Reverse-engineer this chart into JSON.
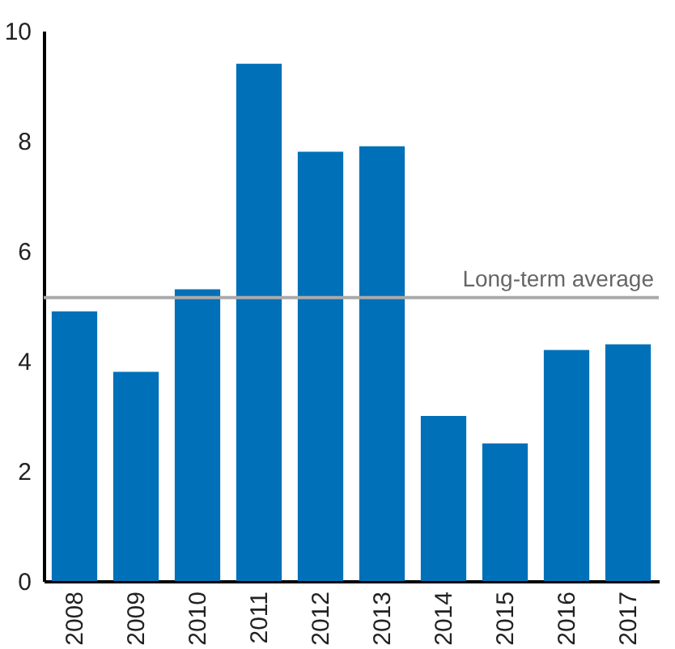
{
  "chart_data": {
    "type": "bar",
    "categories": [
      "2008",
      "2009",
      "2010",
      "2011",
      "2012",
      "2013",
      "2014",
      "2015",
      "2016",
      "2017"
    ],
    "values": [
      4.9,
      3.8,
      5.3,
      9.4,
      7.8,
      7.9,
      3.0,
      2.5,
      4.2,
      4.3
    ],
    "color": "#0070b8",
    "ylim": [
      0,
      10
    ],
    "yticks": [
      0,
      2,
      4,
      6,
      8,
      10
    ],
    "grid": false,
    "ref_lines": [
      {
        "axis": "y",
        "value": 5.15,
        "label": "Long-term average",
        "color": "#aaaaaa"
      }
    ]
  }
}
